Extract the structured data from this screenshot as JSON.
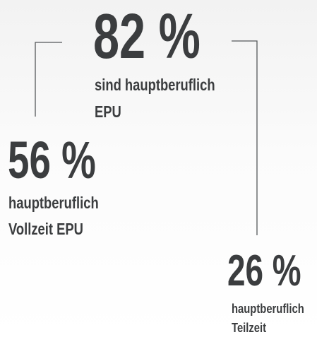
{
  "stats": [
    {
      "value": "82 %",
      "lines": [
        "sind hauptberuflich",
        "EPU"
      ]
    },
    {
      "value": "56 %",
      "lines": [
        "hauptberuflich",
        "Vollzeit EPU"
      ]
    },
    {
      "value": "26 %",
      "lines": [
        "hauptberuflich",
        "Teilzeit"
      ]
    }
  ]
}
